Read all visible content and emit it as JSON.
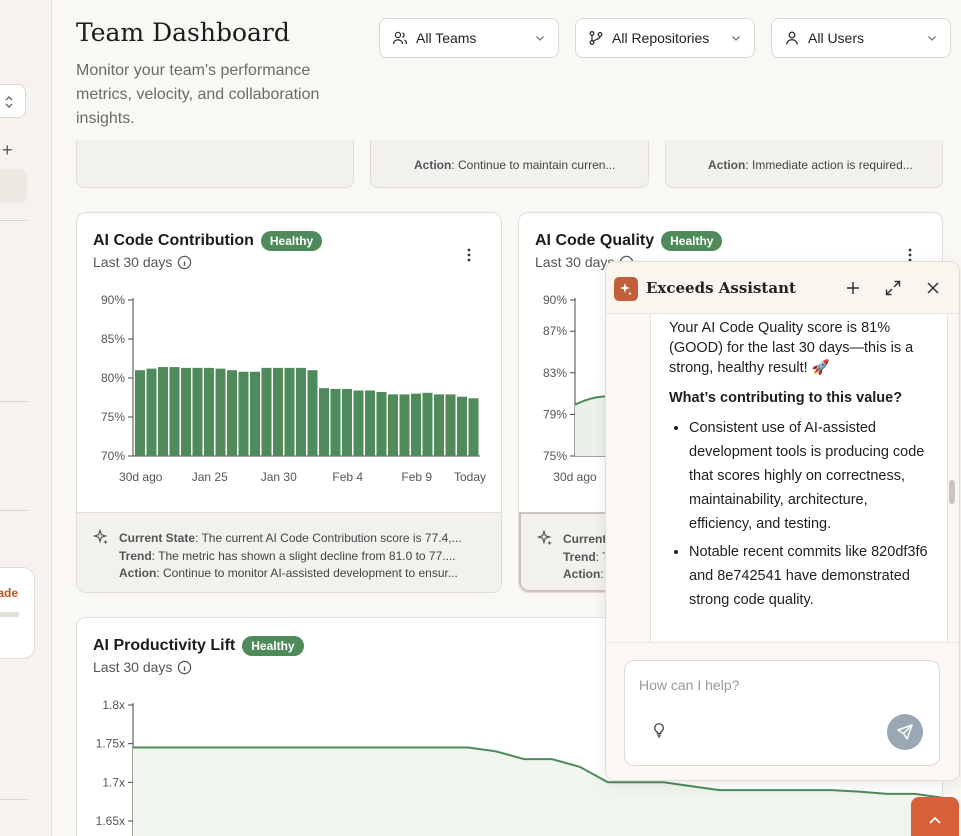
{
  "header": {
    "title": "Team Dashboard",
    "subtitle": "Monitor your team's performance metrics, velocity, and collaboration insights."
  },
  "filters": {
    "teams": "All Teams",
    "repositories": "All Repositories",
    "users": "All Users"
  },
  "sidebar": {
    "upgrade_label": "ade"
  },
  "top_cards": [
    {
      "action_label": "Action",
      "action_text": ": Continue to maintain curren..."
    },
    {
      "action_label": "Action",
      "action_text": ": Immediate action is required..."
    }
  ],
  "cards": {
    "contribution": {
      "title": "AI Code Contribution",
      "badge": "Healthy",
      "period": "Last 30 days",
      "insight": {
        "state_label": "Current State",
        "state_text": ": The current AI Code Contribution score is 77.4,...",
        "trend_label": "Trend",
        "trend_text": ": The metric has shown a slight decline from 81.0 to 77....",
        "action_label": "Action",
        "action_text": ": Continue to monitor AI-assisted development to ensur..."
      }
    },
    "quality": {
      "title": "AI Code Quality",
      "badge": "Healthy",
      "period": "Last 30 days",
      "insight": {
        "state_label": "Current",
        "trend_label": "Trend",
        "trend_text": ": T",
        "action_label": "Action",
        "action_text": ":"
      }
    },
    "productivity": {
      "title": "AI Productivity Lift",
      "badge": "Healthy",
      "period": "Last 30 days"
    }
  },
  "chart_data": [
    {
      "type": "bar",
      "ylim": [
        70,
        90
      ],
      "yticks": [
        "90%",
        "85%",
        "80%",
        "75%",
        "70%"
      ],
      "xticks": [
        "30d ago",
        "Jan 25",
        "Jan 30",
        "Feb 4",
        "Feb 9",
        "Today"
      ],
      "values": [
        81.0,
        81.2,
        81.4,
        81.4,
        81.3,
        81.3,
        81.3,
        81.2,
        81.0,
        80.8,
        80.8,
        81.3,
        81.3,
        81.3,
        81.3,
        81.0,
        78.7,
        78.6,
        78.6,
        78.4,
        78.4,
        78.2,
        77.9,
        77.9,
        78.0,
        78.1,
        77.9,
        77.9,
        77.6,
        77.4
      ],
      "color": "#4e8a5a"
    },
    {
      "type": "area",
      "yticks": [
        "90%",
        "87%",
        "83%",
        "79%",
        "75%"
      ],
      "xticks": [
        "30d ago"
      ],
      "color": "#4e8a5a"
    },
    {
      "type": "area",
      "ylim": [
        1.6,
        1.8
      ],
      "yticks": [
        "1.8x",
        "1.75x",
        "1.7x",
        "1.65x"
      ],
      "values": [
        1.745,
        1.745,
        1.745,
        1.745,
        1.745,
        1.745,
        1.745,
        1.745,
        1.745,
        1.745,
        1.745,
        1.745,
        1.745,
        1.74,
        1.73,
        1.73,
        1.72,
        1.7,
        1.7,
        1.7,
        1.695,
        1.69,
        1.69,
        1.69,
        1.69,
        1.69,
        1.688,
        1.685,
        1.685,
        1.68
      ],
      "color": "#4e8a5a"
    }
  ],
  "assistant": {
    "title": "Exceeds Assistant",
    "message_intro": "Your AI Code Quality score is 81% (GOOD) for the last 30 days—this is a strong, healthy result! 🚀",
    "message_heading": "What’s contributing to this value?",
    "bullets": [
      "Consistent use of AI-assisted development tools is producing code that scores highly on correctness, maintainability, architecture, efficiency, and testing.",
      "Notable recent commits like 820df3f6 and 8e742541 have demonstrated strong code quality."
    ],
    "input_placeholder": "How can I help?"
  }
}
